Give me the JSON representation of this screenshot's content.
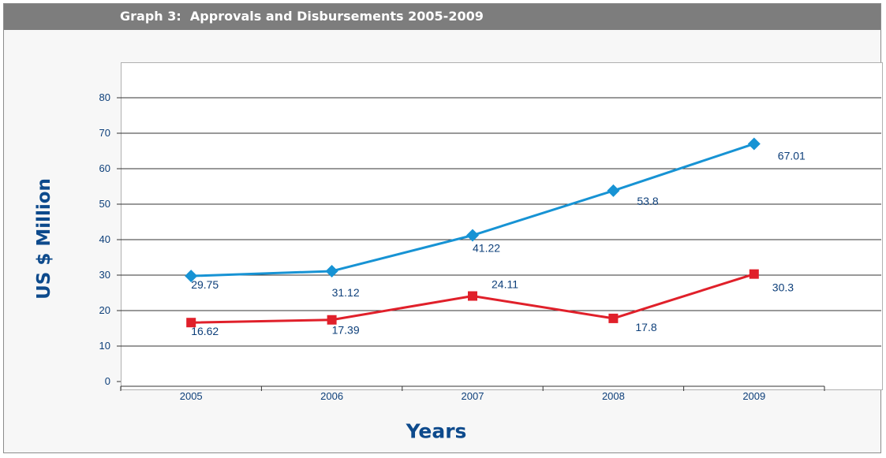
{
  "header": {
    "title": "Graph 3:  Approvals and Disbursements 2005-2009"
  },
  "chart_data": {
    "type": "line",
    "title": "Graph 3:  Approvals and Disbursements 2005-2009",
    "xlabel": "Years",
    "ylabel": "US $ Million",
    "categories": [
      "2005",
      "2006",
      "2007",
      "2008",
      "2009"
    ],
    "ylim": [
      0,
      80
    ],
    "yticks": [
      "0",
      "10",
      "20",
      "30",
      "40",
      "50",
      "60",
      "70",
      "80"
    ],
    "grid": "horizontal",
    "legend": "none",
    "series": [
      {
        "values": [
          29.75,
          31.12,
          41.22,
          53.8,
          67.01
        ],
        "labels": [
          "29.75",
          "31.12",
          "41.22",
          "53.8",
          "67.01"
        ],
        "color": "#1793d4",
        "marker": "diamond"
      },
      {
        "values": [
          16.62,
          17.39,
          24.11,
          17.8,
          30.3
        ],
        "labels": [
          "16.62",
          "17.39",
          "24.11",
          "17.8",
          "30.3"
        ],
        "color": "#e0202a",
        "marker": "square"
      }
    ]
  }
}
